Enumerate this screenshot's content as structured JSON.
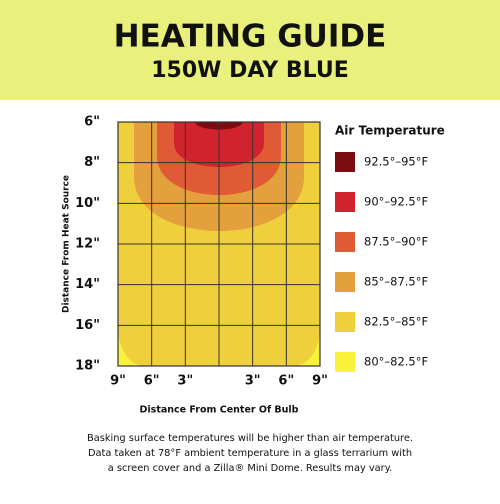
{
  "chart_data": {
    "type": "contour",
    "title": "HEATING GUIDE",
    "subtitle": "150W DAY BLUE",
    "x_label": "Distance From Center Of Bulb",
    "y_label": "Distance From Heat Source",
    "legend_title": "Air Temperature",
    "xlim": [
      -9,
      9
    ],
    "xticks": [
      {
        "value": -9,
        "label": "9\""
      },
      {
        "value": -6,
        "label": "6\""
      },
      {
        "value": -3,
        "label": "3\""
      },
      {
        "value": 3,
        "label": "3\""
      },
      {
        "value": 6,
        "label": "6\""
      },
      {
        "value": 9,
        "label": "9\""
      }
    ],
    "ylim": [
      6,
      18
    ],
    "yticks": [
      {
        "value": 6,
        "label": "6\""
      },
      {
        "value": 8,
        "label": "8\""
      },
      {
        "value": 10,
        "label": "10\""
      },
      {
        "value": 12,
        "label": "12\""
      },
      {
        "value": 14,
        "label": "14\""
      },
      {
        "value": 16,
        "label": "16\""
      },
      {
        "value": 18,
        "label": "18\""
      }
    ],
    "grid": true,
    "series": [
      {
        "name": "92.5°–95°F",
        "color": "#7a0c12"
      },
      {
        "name": "90°–92.5°F",
        "color": "#d1232e"
      },
      {
        "name": "87.5°–90°F",
        "color": "#e05a36"
      },
      {
        "name": "85°–87.5°F",
        "color": "#e3a03c"
      },
      {
        "name": "82.5°–85°F",
        "color": "#f0cf3c"
      },
      {
        "name": "80°–82.5°F",
        "color": "#f8f23a"
      }
    ],
    "footnote": [
      "Basking surface temperatures will be higher than air temperature.",
      "Data taken at 78°F ambient temperature in a glass terrarium with",
      "a screen cover and a Zilla® Mini Dome. Results may vary."
    ]
  }
}
